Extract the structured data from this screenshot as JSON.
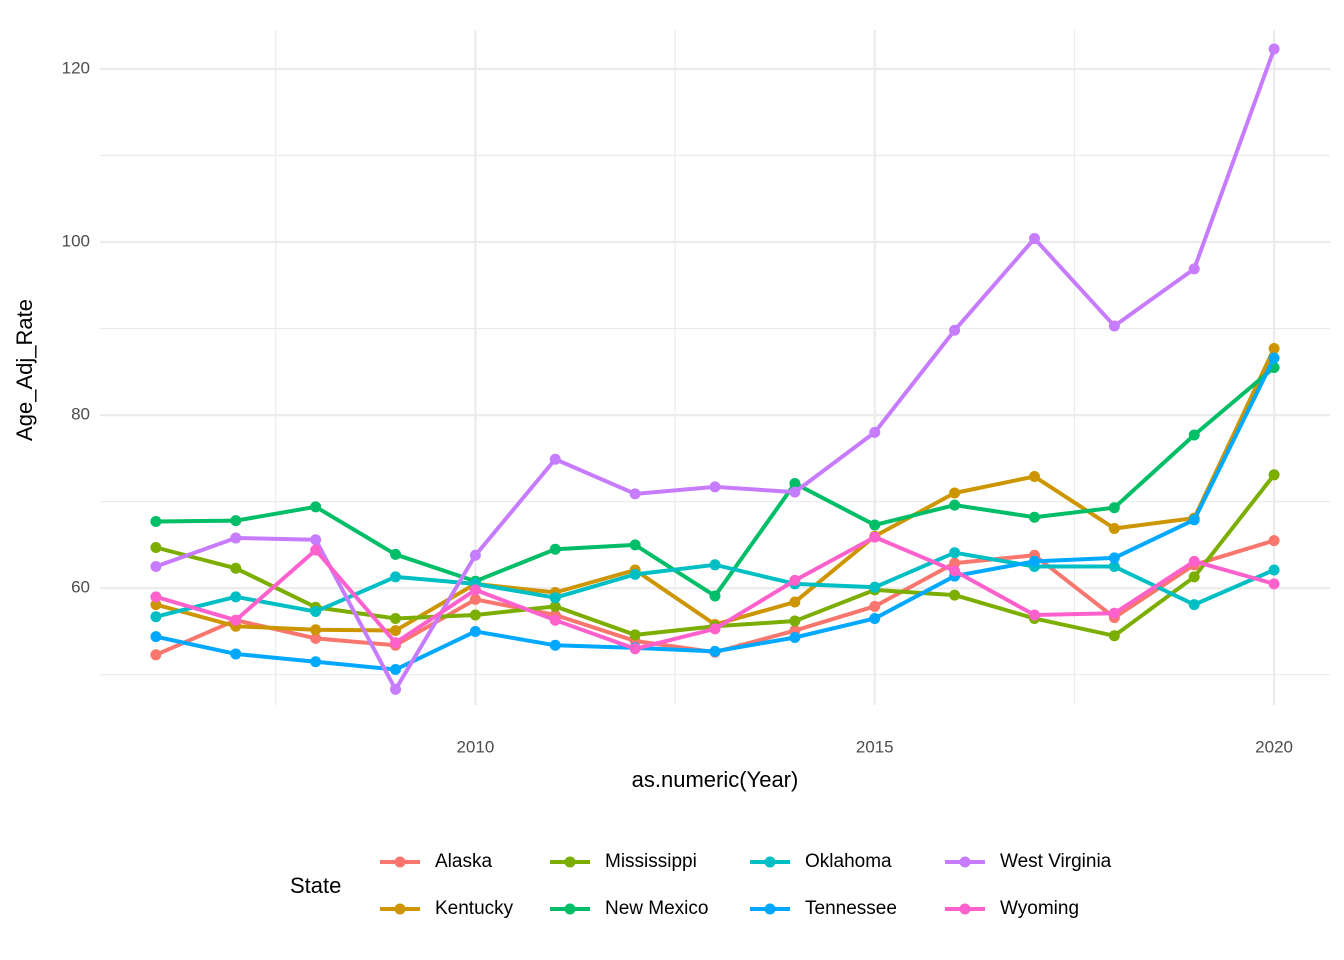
{
  "chart_data": {
    "type": "line",
    "x_label": "as.numeric(Year)",
    "y_label": "Age_Adj_Rate",
    "x": [
      2006,
      2007,
      2008,
      2009,
      2010,
      2011,
      2012,
      2013,
      2014,
      2015,
      2016,
      2017,
      2018,
      2019,
      2020
    ],
    "xlim": [
      2005.3,
      2020.7
    ],
    "xticks": [
      2010,
      2015,
      2020
    ],
    "x_minor_ticks": [
      2007.5,
      2012.5,
      2017.5
    ],
    "ylim": [
      46.5,
      124.5
    ],
    "yticks": [
      60,
      80,
      100,
      120
    ],
    "y_minor_ticks": [
      50,
      70,
      90,
      110
    ],
    "grid": true,
    "legend_title": "State",
    "legend_position": "bottom",
    "series": [
      {
        "name": "Alaska",
        "color": "#F8766D",
        "values": [
          52.3,
          56.3,
          54.2,
          53.4,
          58.7,
          56.9,
          53.9,
          52.6,
          55.1,
          57.9,
          62.9,
          63.8,
          56.6,
          62.7,
          65.5
        ]
      },
      {
        "name": "Kentucky",
        "color": "#CD9600",
        "values": [
          58.1,
          55.6,
          55.2,
          55.1,
          60.5,
          59.5,
          62.1,
          55.8,
          58.4,
          66.0,
          71.0,
          72.9,
          66.9,
          68.1,
          87.7
        ]
      },
      {
        "name": "Mississippi",
        "color": "#7CAE00",
        "values": [
          64.7,
          62.3,
          57.8,
          56.5,
          56.9,
          57.9,
          54.6,
          55.6,
          56.2,
          59.8,
          59.2,
          56.5,
          54.5,
          61.3,
          73.1
        ]
      },
      {
        "name": "New Mexico",
        "color": "#00BE67",
        "values": [
          67.7,
          67.8,
          69.4,
          63.9,
          60.8,
          64.5,
          65.0,
          59.1,
          72.1,
          67.3,
          69.6,
          68.2,
          69.3,
          77.7,
          85.5
        ]
      },
      {
        "name": "Oklahoma",
        "color": "#00BFC4",
        "values": [
          56.7,
          59.0,
          57.3,
          61.3,
          60.5,
          58.9,
          61.6,
          62.7,
          60.5,
          60.1,
          64.1,
          62.5,
          62.5,
          58.1,
          62.1
        ]
      },
      {
        "name": "Tennessee",
        "color": "#00A9FF",
        "values": [
          54.4,
          52.4,
          51.5,
          50.6,
          55.0,
          53.4,
          53.1,
          52.7,
          54.3,
          56.5,
          61.4,
          63.1,
          63.5,
          67.9,
          86.6
        ]
      },
      {
        "name": "West Virginia",
        "color": "#C77CFF",
        "values": [
          62.5,
          65.8,
          65.6,
          48.3,
          63.8,
          74.9,
          70.9,
          71.7,
          71.1,
          78.0,
          89.8,
          100.4,
          90.3,
          96.9,
          122.3
        ]
      },
      {
        "name": "Wyoming",
        "color": "#FF61CC",
        "values": [
          59.0,
          56.3,
          64.4,
          53.7,
          59.8,
          56.3,
          53.0,
          55.3,
          60.9,
          65.9,
          62.0,
          56.9,
          57.1,
          63.1,
          60.5
        ]
      }
    ]
  }
}
